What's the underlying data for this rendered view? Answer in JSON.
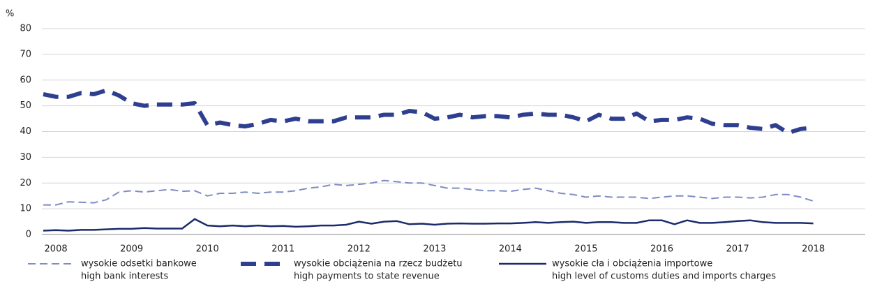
{
  "chart_data": {
    "type": "line",
    "y_label": "%",
    "categories": [
      null,
      "2008",
      null,
      null,
      null,
      null,
      null,
      "2009",
      null,
      null,
      null,
      null,
      null,
      "2010",
      null,
      null,
      null,
      null,
      null,
      "2011",
      null,
      null,
      null,
      null,
      null,
      "2012",
      null,
      null,
      null,
      null,
      null,
      "2013",
      null,
      null,
      null,
      null,
      null,
      "2014",
      null,
      null,
      null,
      null,
      null,
      "2015",
      null,
      null,
      null,
      null,
      null,
      "2016",
      null,
      null,
      null,
      null,
      null,
      "2017",
      null,
      null,
      null,
      null,
      null,
      "2018",
      null,
      null,
      null,
      null
    ],
    "series": [
      {
        "name": "wysokie odsetki bankowe",
        "name_en": "high bank interests",
        "color": "#7d8cc4",
        "style": "dashed",
        "values": [
          11.5,
          11.5,
          12.7,
          12.5,
          12.3,
          13.5,
          16.5,
          17,
          16.5,
          17,
          17.5,
          16.8,
          17,
          15,
          16,
          16,
          16.5,
          16,
          16.5,
          16.5,
          17,
          18,
          18.5,
          19.5,
          19,
          19.5,
          20,
          21,
          20.5,
          20,
          20,
          19,
          18,
          18,
          17.5,
          17,
          17,
          16.8,
          17.5,
          18,
          17,
          16,
          15.5,
          14.5,
          15,
          14.5,
          14.5,
          14.5,
          14,
          14.5,
          15,
          15,
          14.5,
          14,
          14.5,
          14.5,
          14.2,
          14.5,
          15.5,
          15.5,
          14.5,
          13,
          null,
          null,
          null,
          null
        ]
      },
      {
        "name": "wysokie obciążenia na rzecz budżetu",
        "name_en": "high payments to state revenue",
        "color": "#2f3f8f",
        "style": "bold-dashed",
        "values": [
          54.5,
          53.5,
          53.5,
          55,
          54.5,
          56,
          54,
          51,
          50,
          50.5,
          50.5,
          50.5,
          51,
          42.5,
          43.5,
          42.5,
          42,
          43,
          44.5,
          44,
          45,
          44,
          44,
          44,
          45.5,
          45.5,
          45.5,
          46.5,
          46.5,
          48,
          47.5,
          45,
          45.5,
          46.5,
          45.5,
          46,
          46,
          45.5,
          46.5,
          47,
          46.5,
          46.5,
          45.5,
          44,
          46.5,
          45,
          45,
          47,
          44,
          44.5,
          44.5,
          45.5,
          45,
          43,
          42.5,
          42.5,
          41.5,
          41,
          42.5,
          39.5,
          41,
          41.5,
          null,
          null,
          null,
          null
        ]
      },
      {
        "name": "wysokie cła i obciążenia importowe",
        "name_en": "high level of customs duties and imports charges",
        "color": "#1b2a6b",
        "style": "solid",
        "values": [
          1.5,
          1.7,
          1.5,
          1.8,
          1.8,
          2,
          2.2,
          2.2,
          2.5,
          2.3,
          2.3,
          2.3,
          6,
          3.5,
          3.2,
          3.5,
          3.2,
          3.5,
          3.2,
          3.3,
          3,
          3.2,
          3.5,
          3.5,
          3.8,
          5,
          4.2,
          5,
          5.2,
          4,
          4.2,
          3.8,
          4.2,
          4.3,
          4.2,
          4.2,
          4.3,
          4.3,
          4.5,
          4.8,
          4.5,
          4.8,
          5,
          4.5,
          4.8,
          4.8,
          4.5,
          4.5,
          5.5,
          5.5,
          4,
          5.5,
          4.5,
          4.5,
          4.8,
          5.2,
          5.5,
          4.8,
          4.5,
          4.5,
          4.5,
          4.3,
          null,
          null,
          null,
          null
        ]
      }
    ],
    "ylim": [
      0,
      80
    ],
    "yticks": [
      0,
      10,
      20,
      30,
      40,
      50,
      60,
      70,
      80
    ],
    "grid": true
  }
}
